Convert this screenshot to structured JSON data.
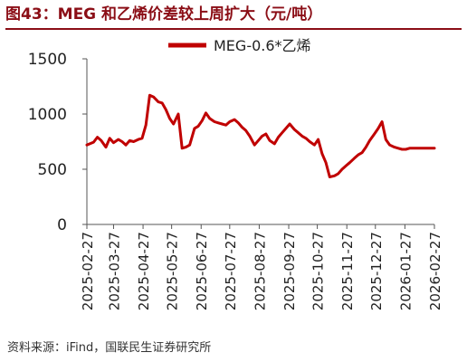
{
  "title": "图43：MEG 和乙烯价差较上周扩大（元/吨）",
  "source": "资料来源：iFind，国联民生证券研究所",
  "chart_data": {
    "type": "line",
    "title": "",
    "xlabel": "",
    "ylabel": "",
    "ylim": [
      0,
      1500
    ],
    "yticks": [
      0,
      500,
      1000,
      1500
    ],
    "xtick_labels": [
      "2025-02-27",
      "2025-03-27",
      "2025-04-27",
      "2025-05-27",
      "2025-06-27",
      "2025-07-27",
      "2025-08-27",
      "2025-09-27",
      "2025-10-27",
      "2025-11-27",
      "2025-12-27",
      "2026-01-27",
      "2026-02-27"
    ],
    "legend": {
      "position": "top-center"
    },
    "grid": false,
    "series": [
      {
        "name": "MEG-0.6*乙烯",
        "color": "#c00000",
        "x": [
          "2025-02-27",
          "2025-03-02",
          "2025-03-06",
          "2025-03-10",
          "2025-03-14",
          "2025-03-19",
          "2025-03-23",
          "2025-03-27",
          "2025-04-01",
          "2025-04-05",
          "2025-04-09",
          "2025-04-13",
          "2025-04-17",
          "2025-04-22",
          "2025-04-26",
          "2025-04-30",
          "2025-05-04",
          "2025-05-08",
          "2025-05-13",
          "2025-05-17",
          "2025-05-21",
          "2025-05-25",
          "2025-05-29",
          "2025-06-03",
          "2025-06-07",
          "2025-06-11",
          "2025-06-15",
          "2025-06-20",
          "2025-06-24",
          "2025-06-28",
          "2025-07-02",
          "2025-07-06",
          "2025-07-11",
          "2025-07-15",
          "2025-07-19",
          "2025-07-23",
          "2025-07-27",
          "2025-08-01",
          "2025-08-05",
          "2025-08-09",
          "2025-08-13",
          "2025-08-17",
          "2025-08-22",
          "2025-08-26",
          "2025-08-30",
          "2025-09-03",
          "2025-09-07",
          "2025-09-12",
          "2025-09-16",
          "2025-09-20",
          "2025-09-24",
          "2025-09-28",
          "2025-10-03",
          "2025-10-07",
          "2025-10-11",
          "2025-10-15",
          "2025-10-19",
          "2025-10-24",
          "2025-10-28",
          "2025-11-01",
          "2025-11-05",
          "2025-11-09",
          "2025-11-14",
          "2025-11-18",
          "2025-11-22",
          "2025-11-26",
          "2025-11-30",
          "2025-12-05",
          "2025-12-09",
          "2025-12-13",
          "2025-12-17",
          "2025-12-21",
          "2025-12-26",
          "2025-12-30",
          "2026-01-03",
          "2026-01-07",
          "2026-01-11",
          "2026-01-16",
          "2026-01-20",
          "2026-01-24",
          "2026-01-28",
          "2026-02-01",
          "2026-02-05",
          "2026-02-09",
          "2026-02-13",
          "2026-02-17",
          "2026-02-22",
          "2026-02-27"
        ],
        "values": [
          720,
          730,
          745,
          790,
          760,
          700,
          780,
          740,
          770,
          750,
          720,
          760,
          750,
          770,
          780,
          900,
          1170,
          1155,
          1110,
          1100,
          1040,
          960,
          910,
          1000,
          690,
          700,
          720,
          870,
          890,
          940,
          1010,
          960,
          930,
          920,
          910,
          900,
          930,
          950,
          920,
          880,
          850,
          800,
          720,
          760,
          800,
          820,
          760,
          730,
          790,
          830,
          870,
          910,
          860,
          830,
          800,
          780,
          750,
          720,
          770,
          640,
          560,
          430,
          440,
          460,
          500,
          530,
          560,
          600,
          630,
          650,
          700,
          760,
          820,
          870,
          930,
          770,
          720,
          700,
          690,
          680,
          680,
          690,
          690,
          690,
          690,
          690,
          690,
          690
        ]
      }
    ]
  }
}
